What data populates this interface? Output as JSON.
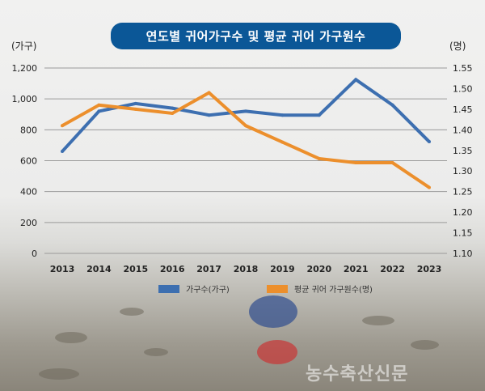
{
  "chart_data": {
    "type": "line",
    "title": "연도별 귀어가구수 및 평균 귀어 가구원수",
    "x": [
      "2013",
      "2014",
      "2015",
      "2016",
      "2017",
      "2018",
      "2019",
      "2020",
      "2021",
      "2022",
      "2023"
    ],
    "y_left": {
      "label": "(가구)",
      "ylim": [
        0,
        1200
      ],
      "ticks": [
        "0",
        "200",
        "400",
        "600",
        "800",
        "1,000",
        "1,200"
      ]
    },
    "y_right": {
      "label": "(명)",
      "ylim": [
        1.1,
        1.55
      ],
      "ticks": [
        "1.10",
        "1.15",
        "1.20",
        "1.25",
        "1.30",
        "1.35",
        "1.40",
        "1.45",
        "1.50",
        "1.55"
      ]
    },
    "grid": true,
    "legend_position": "bottom",
    "series": [
      {
        "name": "가구수(가구)",
        "axis": "left",
        "color": "#3d6fb0",
        "values": [
          660,
          920,
          970,
          940,
          895,
          920,
          895,
          895,
          1125,
          960,
          723
        ]
      },
      {
        "name": "평균 귀어 가구원수(명)",
        "axis": "right",
        "color": "#ec8f2c",
        "values": [
          1.41,
          1.46,
          1.45,
          1.44,
          1.49,
          1.41,
          1.37,
          1.33,
          1.32,
          1.32,
          1.26
        ]
      }
    ]
  },
  "watermark": "농수축산신문"
}
